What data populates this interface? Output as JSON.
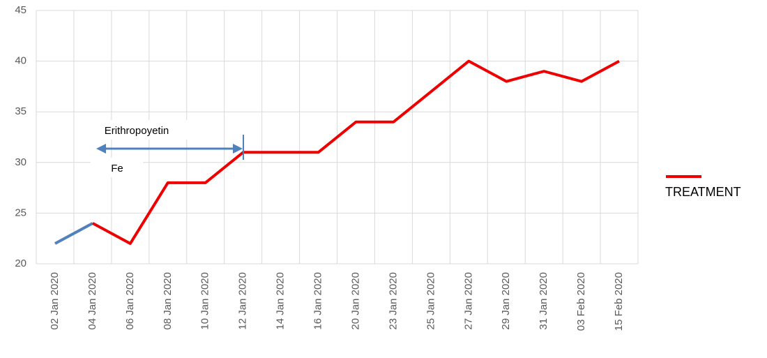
{
  "chart_data": {
    "type": "line",
    "categories": [
      "02 Jan 2020",
      "04 Jan 2020",
      "06 Jan 2020",
      "08 Jan 2020",
      "10 Jan 2020",
      "12 Jan 2020",
      "14 Jan 2020",
      "16 Jan 2020",
      "20 Jan 2020",
      "23 Jan 2020",
      "25 Jan 2020",
      "27 Jan 2020",
      "29 Jan 2020",
      "31 Jan 2020",
      "03 Feb 2020",
      "15 Feb 2020"
    ],
    "series": [
      {
        "color": "#4f81bd",
        "values": [
          22,
          24,
          null,
          null,
          null,
          null,
          null,
          null,
          null,
          null,
          null,
          null,
          null,
          null,
          null,
          null
        ]
      },
      {
        "name": "TREATMENT",
        "color": "#ee0000",
        "values": [
          null,
          24,
          22,
          28,
          28,
          31,
          31,
          31,
          34,
          34,
          37,
          40,
          38,
          39,
          38,
          40
        ]
      }
    ],
    "annotations": [
      "Erithropoyetin",
      "Fe"
    ],
    "ylim": [
      20,
      45
    ],
    "yticks": [
      20,
      25,
      30,
      35,
      40,
      45
    ],
    "grid": true
  }
}
